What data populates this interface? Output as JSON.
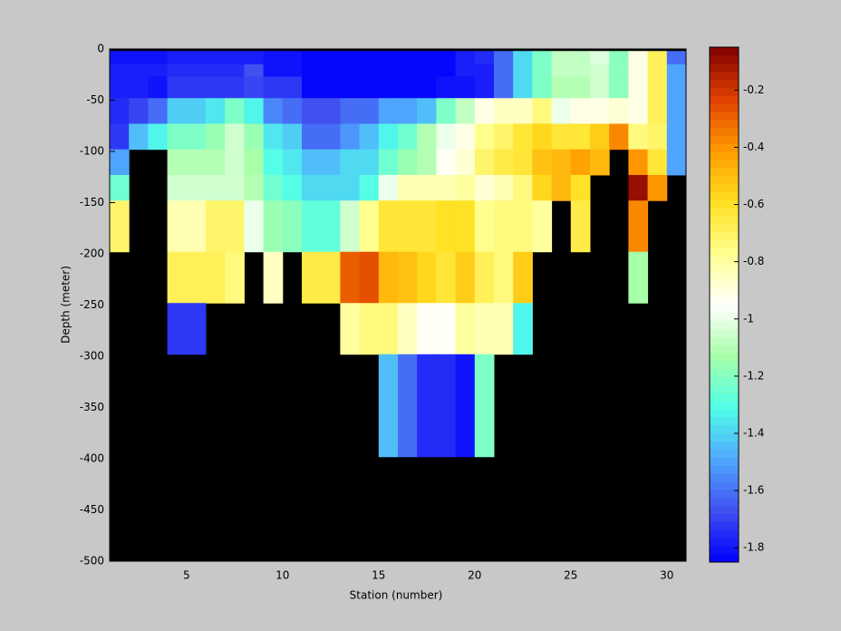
{
  "chart_data": {
    "type": "heatmap",
    "xlabel": "Station (number)",
    "ylabel": "Depth (meter)",
    "xlim": [
      1,
      31
    ],
    "xticks": [
      5,
      10,
      15,
      20,
      25,
      30
    ],
    "ylim": [
      -500,
      0
    ],
    "yticks": [
      0,
      -50,
      -100,
      -150,
      -200,
      -250,
      -300,
      -350,
      -400,
      -450,
      -500
    ],
    "x_edges": [
      1,
      2,
      3,
      4,
      5,
      6,
      7,
      8,
      9,
      10,
      11,
      12,
      13,
      14,
      15,
      16,
      17,
      18,
      19,
      20,
      21,
      22,
      23,
      24,
      25,
      26,
      27,
      28,
      29,
      30,
      31
    ],
    "y_edges": [
      -2,
      -15,
      -27,
      -48,
      -73,
      -98,
      -123,
      -148,
      -198,
      -248,
      -298,
      -398
    ],
    "z": [
      [
        -1.8,
        -1.8,
        -1.8,
        -1.78,
        -1.78,
        -1.78,
        -1.78,
        -1.78,
        -1.8,
        -1.8,
        -1.85,
        -1.85,
        -1.85,
        -1.85,
        -1.85,
        -1.85,
        -1.85,
        -1.85,
        -1.78,
        -1.75,
        -1.62,
        -1.4,
        -1.22,
        -1.08,
        -1.08,
        -1.02,
        -1.2,
        -0.9,
        -0.68,
        -1.6
      ],
      [
        -1.78,
        -1.78,
        -1.78,
        -1.75,
        -1.75,
        -1.75,
        -1.75,
        -1.68,
        -1.8,
        -1.8,
        -1.85,
        -1.85,
        -1.85,
        -1.85,
        -1.85,
        -1.85,
        -1.85,
        -1.85,
        -1.78,
        -1.78,
        -1.62,
        -1.4,
        -1.22,
        -1.08,
        -1.08,
        -1.05,
        -1.2,
        -0.9,
        -0.68,
        -1.5
      ],
      [
        -1.78,
        -1.78,
        -1.8,
        -1.72,
        -1.72,
        -1.72,
        -1.72,
        -1.7,
        -1.72,
        -1.72,
        -1.85,
        -1.85,
        -1.85,
        -1.85,
        -1.85,
        -1.85,
        -1.85,
        -1.8,
        -1.8,
        -1.78,
        -1.62,
        -1.4,
        -1.22,
        -1.1,
        -1.1,
        -1.05,
        -1.2,
        -0.92,
        -0.68,
        -1.5
      ],
      [
        -1.75,
        -1.7,
        -1.6,
        -1.42,
        -1.42,
        -1.35,
        -1.22,
        -1.32,
        -1.55,
        -1.6,
        -1.68,
        -1.68,
        -1.62,
        -1.6,
        -1.5,
        -1.5,
        -1.45,
        -1.22,
        -1.08,
        -0.92,
        -0.85,
        -0.85,
        -0.75,
        -1,
        -0.9,
        -0.9,
        -0.88,
        -0.9,
        -0.68,
        -1.5
      ],
      [
        -1.72,
        -1.45,
        -1.32,
        -1.22,
        -1.22,
        -1.15,
        -1.05,
        -1.15,
        -1.35,
        -1.42,
        -1.6,
        -1.6,
        -1.52,
        -1.45,
        -1.32,
        -1.25,
        -1.1,
        -0.98,
        -0.9,
        -0.78,
        -0.72,
        -0.62,
        -0.58,
        -0.62,
        -0.62,
        -0.55,
        -0.38,
        -0.75,
        -0.72,
        -1.5
      ],
      [
        -1.5,
        null,
        null,
        -1.1,
        -1.1,
        -1.1,
        -1.05,
        -1.12,
        -1.3,
        -1.35,
        -1.45,
        -1.45,
        -1.38,
        -1.38,
        -1.25,
        -1.15,
        -1.1,
        -0.95,
        -0.88,
        -0.72,
        -0.65,
        -0.62,
        -0.52,
        -0.48,
        -0.42,
        -0.48,
        null,
        -0.4,
        -0.62,
        -1.5
      ],
      [
        -1.25,
        null,
        null,
        -1.05,
        -1.05,
        -1.05,
        -1.05,
        -1.1,
        -1.25,
        -1.3,
        -1.38,
        -1.38,
        -1.38,
        -1.3,
        -0.98,
        -0.82,
        -0.82,
        -0.82,
        -0.8,
        -0.88,
        -0.82,
        -0.75,
        -0.58,
        -0.5,
        -0.6,
        null,
        null,
        -0.08,
        -0.4,
        null
      ],
      [
        -0.7,
        null,
        null,
        -0.82,
        -0.82,
        -0.7,
        -0.7,
        -0.98,
        -1.15,
        -1.2,
        -1.28,
        -1.28,
        -1.05,
        -0.78,
        -0.62,
        -0.62,
        -0.62,
        -0.6,
        -0.6,
        -0.78,
        -0.75,
        -0.75,
        -0.8,
        null,
        -0.65,
        null,
        null,
        -0.38,
        null,
        null
      ],
      [
        null,
        null,
        null,
        -0.68,
        -0.68,
        -0.68,
        -0.75,
        null,
        -0.85,
        null,
        -0.65,
        -0.65,
        -0.28,
        -0.25,
        -0.48,
        -0.52,
        -0.58,
        -0.62,
        -0.55,
        -0.68,
        -0.75,
        -0.55,
        null,
        null,
        null,
        null,
        null,
        -1.12,
        null,
        null
      ],
      [
        null,
        null,
        null,
        -1.72,
        -1.72,
        null,
        null,
        null,
        null,
        null,
        null,
        null,
        -0.8,
        -0.75,
        -0.75,
        -0.85,
        -0.95,
        -0.95,
        -0.8,
        -0.82,
        -0.82,
        -1.32,
        null,
        null,
        null,
        null,
        null,
        null,
        null,
        null
      ],
      [
        null,
        null,
        null,
        null,
        null,
        null,
        null,
        null,
        null,
        null,
        null,
        null,
        null,
        null,
        -1.45,
        -1.6,
        -1.75,
        -1.75,
        -1.82,
        -1.22,
        null,
        null,
        null,
        null,
        null,
        null,
        null,
        null,
        null,
        null
      ]
    ],
    "clim": [
      -1.85,
      -0.05
    ],
    "colorbar_ticks": [
      -0.2,
      -0.4,
      -0.6,
      -0.8,
      -1,
      -1.2,
      -1.4,
      -1.6,
      -1.8
    ],
    "colormap": [
      "#0000ff",
      "#4050f0",
      "#50a8ff",
      "#50ffe8",
      "#a8ffa8",
      "#ffffff",
      "#ffff90",
      "#ffe020",
      "#ff9a00",
      "#e04000",
      "#800000"
    ],
    "nan_color": "#000000"
  }
}
